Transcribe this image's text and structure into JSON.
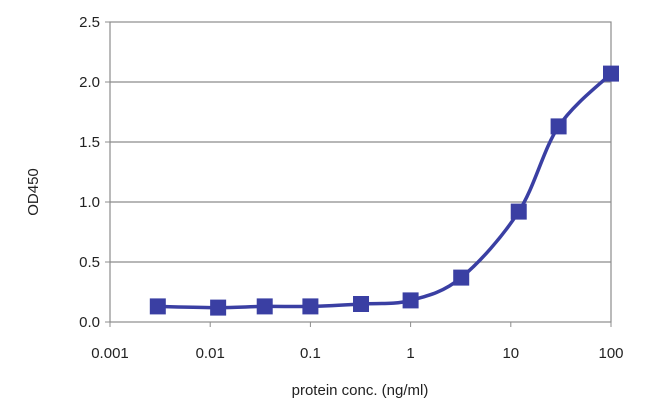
{
  "chart_data": {
    "type": "line",
    "xlabel": "protein conc. (ng/ml)",
    "ylabel": "OD450",
    "x_scale": "log",
    "xlim": [
      0.001,
      100
    ],
    "ylim": [
      0,
      2.5
    ],
    "x_ticks": [
      "0.001",
      "0.01",
      "0.1",
      "1",
      "10",
      "100"
    ],
    "y_ticks": [
      "0.0",
      "0.5",
      "1.0",
      "1.5",
      "2.0",
      "2.5"
    ],
    "grid": "horizontal",
    "legend": "none",
    "series": [
      {
        "color": "#3a3fa3",
        "marker": "square",
        "x": [
          0.003,
          0.012,
          0.035,
          0.1,
          0.32,
          1,
          3.2,
          12,
          30,
          100
        ],
        "y": [
          0.13,
          0.12,
          0.13,
          0.13,
          0.15,
          0.18,
          0.37,
          0.92,
          1.63,
          2.07
        ]
      }
    ]
  }
}
